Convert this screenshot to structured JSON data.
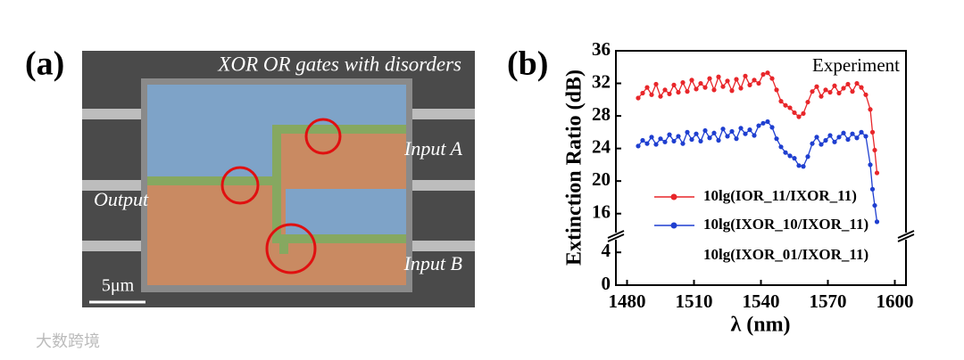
{
  "panel_a": {
    "label": "(a)",
    "title": "XOR OR gates with disorders",
    "input_a": "Input A",
    "output": "Output",
    "input_b": "Input B",
    "scale_bar": "5μm"
  },
  "watermark": "大数跨境",
  "chart_data": {
    "type": "line",
    "panel_label": "(b)",
    "annotation": "Experiment",
    "xlabel": "λ (nm)",
    "ylabel": "Extinction Ratio (dB)",
    "xlim": [
      1475,
      1605
    ],
    "xticks": [
      1480,
      1510,
      1540,
      1570,
      1600
    ],
    "ylim": [
      0,
      36
    ],
    "ybreak": [
      5,
      14
    ],
    "yticks": [
      0,
      4,
      16,
      20,
      24,
      28,
      32,
      36
    ],
    "x": [
      1485,
      1487,
      1489,
      1491,
      1493,
      1495,
      1497,
      1499,
      1501,
      1503,
      1505,
      1507,
      1509,
      1511,
      1513,
      1515,
      1517,
      1519,
      1521,
      1523,
      1525,
      1527,
      1529,
      1531,
      1533,
      1535,
      1537,
      1539,
      1541,
      1543,
      1545,
      1547,
      1549,
      1551,
      1553,
      1555,
      1557,
      1559,
      1561,
      1563,
      1565,
      1567,
      1569,
      1571,
      1573,
      1575,
      1577,
      1579,
      1581,
      1583,
      1585,
      1587,
      1589,
      1590,
      1591,
      1592
    ],
    "series": [
      {
        "name": "10lg(IOR_11/IXOR_11)",
        "color": "#e8262a",
        "values": [
          30.2,
          30.8,
          31.5,
          30.6,
          31.9,
          30.4,
          31.2,
          30.7,
          31.8,
          30.9,
          32.1,
          31.0,
          32.4,
          31.3,
          32.0,
          31.5,
          32.6,
          31.2,
          32.8,
          31.6,
          32.3,
          31.1,
          32.5,
          31.4,
          32.9,
          31.8,
          32.4,
          32.0,
          33.1,
          33.3,
          32.6,
          31.2,
          29.8,
          29.3,
          29.0,
          28.4,
          27.9,
          28.3,
          29.7,
          31.0,
          31.6,
          30.4,
          31.2,
          30.9,
          31.7,
          30.8,
          31.4,
          31.9,
          31.0,
          32.0,
          31.5,
          30.6,
          28.8,
          26.0,
          23.8,
          21.0
        ]
      },
      {
        "name": "10lg(IXOR_10/IXOR_11)",
        "color": "#1f3fd0",
        "values": [
          24.3,
          25.0,
          24.6,
          25.4,
          24.5,
          25.2,
          24.8,
          25.7,
          24.9,
          25.5,
          24.6,
          26.0,
          25.1,
          25.8,
          24.9,
          26.2,
          25.3,
          25.9,
          25.0,
          26.4,
          25.5,
          26.1,
          25.2,
          26.5,
          25.8,
          26.3,
          25.6,
          26.8,
          27.1,
          27.3,
          26.6,
          25.2,
          24.2,
          23.5,
          23.1,
          22.8,
          21.9,
          21.8,
          23.0,
          24.6,
          25.4,
          24.5,
          25.0,
          25.6,
          24.8,
          25.4,
          25.9,
          25.1,
          25.8,
          25.3,
          26.0,
          25.5,
          22.0,
          19.0,
          17.0,
          15.0
        ]
      }
    ],
    "extra_legend": "10lg(IXOR_01/IXOR_11)"
  }
}
